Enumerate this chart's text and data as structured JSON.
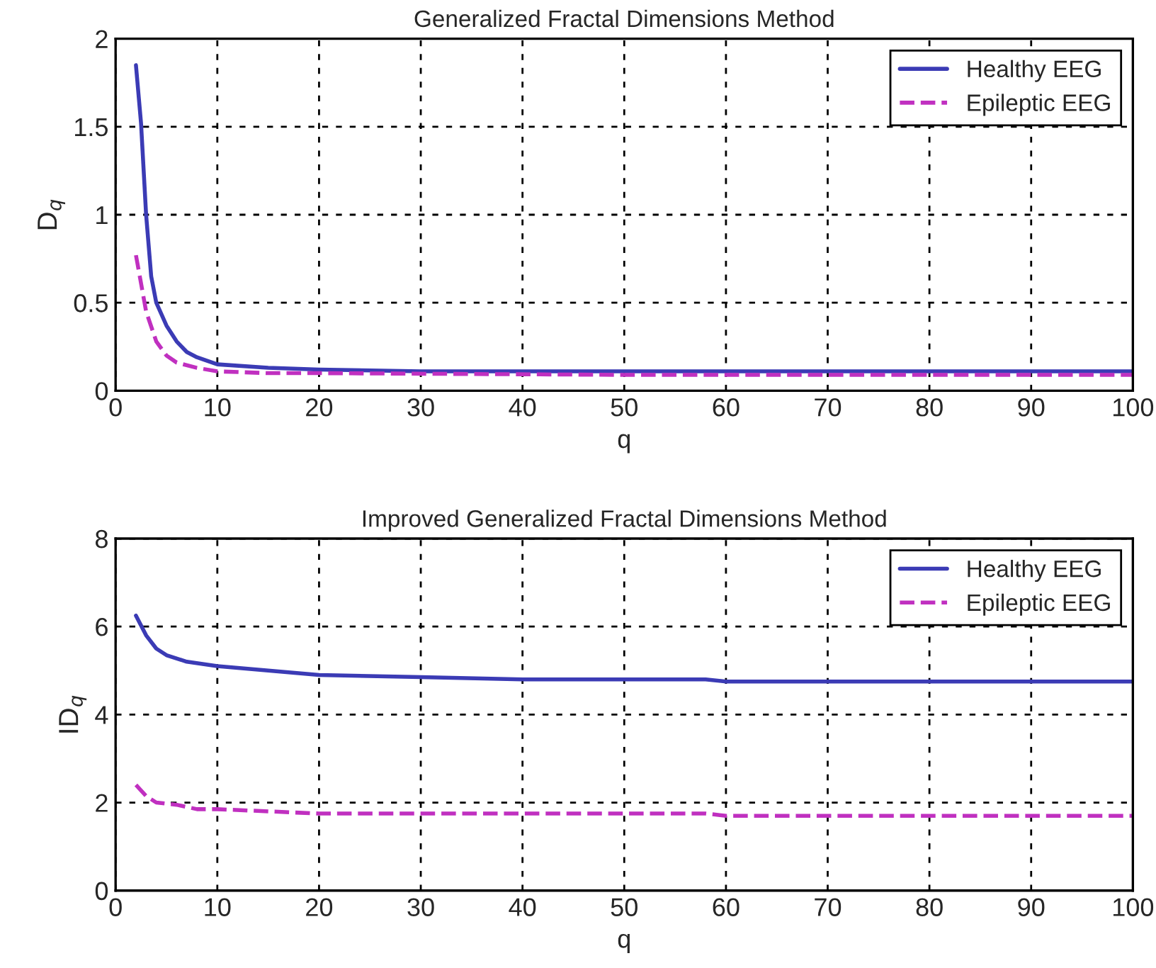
{
  "chart_data": [
    {
      "type": "line",
      "title": "Generalized Fractal Dimensions Method",
      "xlabel": "q",
      "ylabel": "D$_{q}$",
      "xlim": [
        0,
        100
      ],
      "xticks": [
        0,
        10,
        20,
        30,
        40,
        50,
        60,
        70,
        80,
        90,
        100
      ],
      "ylim": [
        0,
        2
      ],
      "yticks": [
        0,
        0.5,
        1,
        1.5,
        2
      ],
      "grid": true,
      "legend": "top right",
      "series": [
        {
          "name": "Healthy EEG",
          "color": "#3b3bb5",
          "line_style": "solid",
          "x": [
            2,
            2.5,
            3,
            3.5,
            4,
            5,
            6,
            7,
            8,
            10,
            15,
            20,
            30,
            50,
            100
          ],
          "values": [
            1.85,
            1.52,
            1.0,
            0.65,
            0.5,
            0.37,
            0.28,
            0.22,
            0.19,
            0.15,
            0.13,
            0.12,
            0.11,
            0.11,
            0.11
          ]
        },
        {
          "name": "Epileptic EEG",
          "color": "#c030c0",
          "line_style": "dashed",
          "x": [
            2,
            3,
            4,
            5,
            6,
            8,
            10,
            15,
            20,
            50,
            100
          ],
          "values": [
            0.77,
            0.45,
            0.28,
            0.2,
            0.16,
            0.13,
            0.11,
            0.1,
            0.1,
            0.09,
            0.09
          ]
        }
      ]
    },
    {
      "type": "line",
      "title": "Improved Generalized Fractal Dimensions Method",
      "xlabel": "q",
      "ylabel": "ID$_{q}$",
      "xlim": [
        0,
        100
      ],
      "xticks": [
        0,
        10,
        20,
        30,
        40,
        50,
        60,
        70,
        80,
        90,
        100
      ],
      "ylim": [
        0,
        8
      ],
      "yticks": [
        0,
        2,
        4,
        6,
        8
      ],
      "grid": true,
      "legend": "top right",
      "series": [
        {
          "name": "Healthy EEG",
          "color": "#3b3bb5",
          "line_style": "solid",
          "x": [
            2,
            3,
            4,
            5,
            7,
            10,
            15,
            20,
            30,
            40,
            58,
            60,
            100
          ],
          "values": [
            6.25,
            5.8,
            5.5,
            5.35,
            5.2,
            5.1,
            5.0,
            4.9,
            4.85,
            4.8,
            4.8,
            4.75,
            4.75
          ]
        },
        {
          "name": "Epileptic EEG",
          "color": "#c030c0",
          "line_style": "dashed",
          "x": [
            2,
            3,
            4,
            6,
            8,
            10,
            20,
            40,
            58,
            60,
            100
          ],
          "values": [
            2.4,
            2.15,
            2.0,
            1.95,
            1.85,
            1.85,
            1.75,
            1.75,
            1.75,
            1.7,
            1.7
          ]
        }
      ]
    }
  ]
}
